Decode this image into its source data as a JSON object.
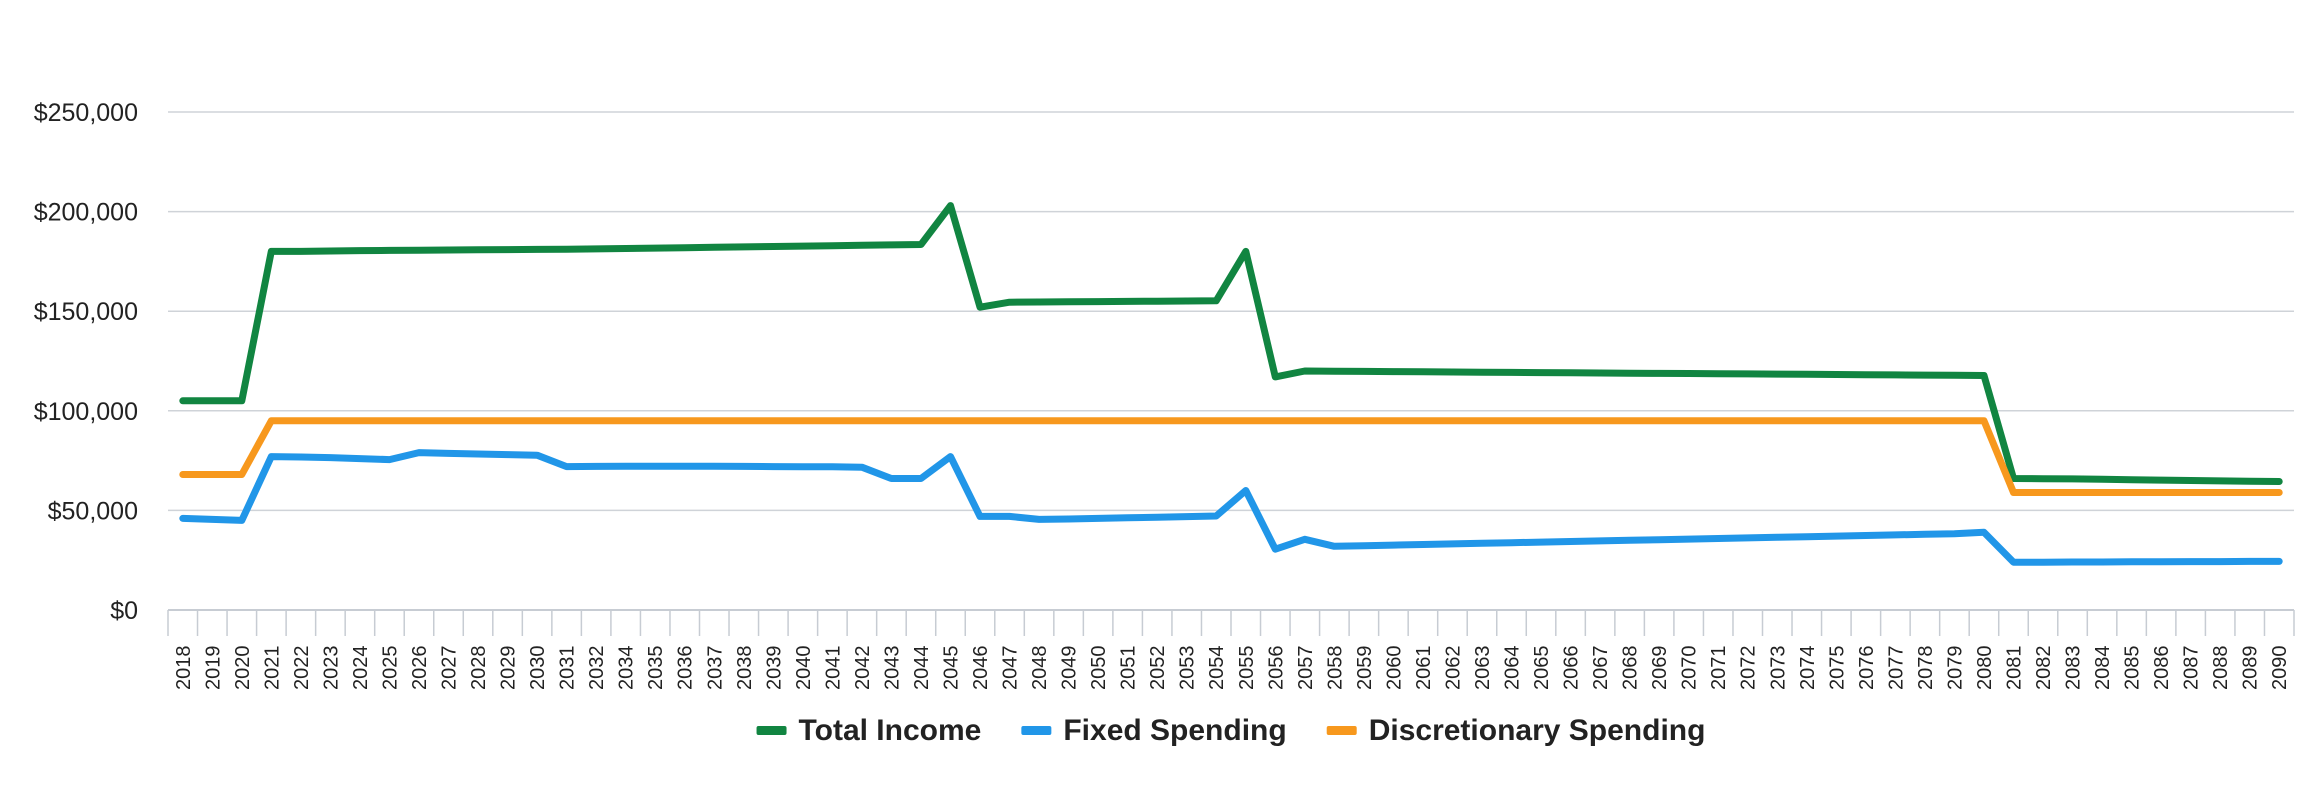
{
  "chart_data": {
    "type": "line",
    "title": "",
    "xlabel": "",
    "ylabel": "",
    "ylim": [
      0,
      250000
    ],
    "yticks": [
      0,
      50000,
      100000,
      150000,
      200000,
      250000
    ],
    "ytick_labels": [
      "$0",
      "$50,000",
      "$100,000",
      "$150,000",
      "$200,000",
      "$250,000"
    ],
    "grid": "horizontal",
    "legend_position": "bottom",
    "x": [
      2018,
      2019,
      2020,
      2021,
      2022,
      2023,
      2024,
      2025,
      2026,
      2027,
      2028,
      2029,
      2030,
      2031,
      2032,
      2034,
      2035,
      2036,
      2037,
      2038,
      2039,
      2040,
      2041,
      2042,
      2043,
      2044,
      2045,
      2046,
      2047,
      2048,
      2049,
      2050,
      2051,
      2052,
      2053,
      2054,
      2055,
      2056,
      2057,
      2058,
      2059,
      2060,
      2061,
      2062,
      2063,
      2064,
      2065,
      2066,
      2067,
      2068,
      2069,
      2070,
      2071,
      2072,
      2073,
      2074,
      2075,
      2076,
      2077,
      2078,
      2079,
      2080,
      2081,
      2082,
      2083,
      2084,
      2085,
      2086,
      2087,
      2088,
      2089,
      2090
    ],
    "series": [
      {
        "name": "Total Income",
        "color": "#118541",
        "values": [
          105000,
          105000,
          105000,
          180000,
          180000,
          180200,
          180400,
          180500,
          180600,
          180700,
          180800,
          180900,
          181000,
          181100,
          181300,
          181500,
          181700,
          181900,
          182100,
          182300,
          182500,
          182700,
          182900,
          183100,
          183300,
          183500,
          203000,
          152000,
          154500,
          154600,
          154700,
          154800,
          154900,
          155000,
          155100,
          155200,
          180000,
          117000,
          120000,
          119900,
          119800,
          119700,
          119600,
          119500,
          119400,
          119300,
          119200,
          119100,
          119000,
          118900,
          118800,
          118700,
          118600,
          118500,
          118400,
          118300,
          118200,
          118100,
          118000,
          117900,
          117800,
          117700,
          66000,
          65900,
          65800,
          65600,
          65400,
          65200,
          65000,
          64800,
          64600,
          64500
        ]
      },
      {
        "name": "Fixed Spending",
        "color": "#2196e8",
        "values": [
          46000,
          45500,
          45000,
          77000,
          76800,
          76500,
          76000,
          75500,
          79000,
          78600,
          78300,
          78000,
          77700,
          72000,
          72100,
          72200,
          72200,
          72200,
          72200,
          72100,
          72000,
          71900,
          71900,
          71700,
          66000,
          66000,
          77000,
          47000,
          47000,
          45500,
          45700,
          46000,
          46300,
          46600,
          46900,
          47200,
          60000,
          30500,
          35500,
          32000,
          32300,
          32600,
          32900,
          33200,
          33500,
          33800,
          34100,
          34400,
          34700,
          35000,
          35300,
          35600,
          35900,
          36200,
          36500,
          36800,
          37100,
          37400,
          37700,
          38000,
          38300,
          39000,
          24000,
          24000,
          24100,
          24100,
          24200,
          24200,
          24300,
          24300,
          24400,
          24400
        ]
      },
      {
        "name": "Discretionary Spending",
        "color": "#f7981d",
        "values": [
          68000,
          68000,
          68000,
          95000,
          95000,
          95000,
          95000,
          95000,
          95000,
          95000,
          95000,
          95000,
          95000,
          95000,
          95000,
          95000,
          95000,
          95000,
          95000,
          95000,
          95000,
          95000,
          95000,
          95000,
          95000,
          95000,
          95000,
          95000,
          95000,
          95000,
          95000,
          95000,
          95000,
          95000,
          95000,
          95000,
          95000,
          95000,
          95000,
          95000,
          95000,
          95000,
          95000,
          95000,
          95000,
          95000,
          95000,
          95000,
          95000,
          95000,
          95000,
          95000,
          95000,
          95000,
          95000,
          95000,
          95000,
          95000,
          95000,
          95000,
          95000,
          95000,
          59000,
          59000,
          59000,
          59000,
          59000,
          59000,
          59000,
          59000,
          59000,
          59000
        ]
      }
    ]
  }
}
